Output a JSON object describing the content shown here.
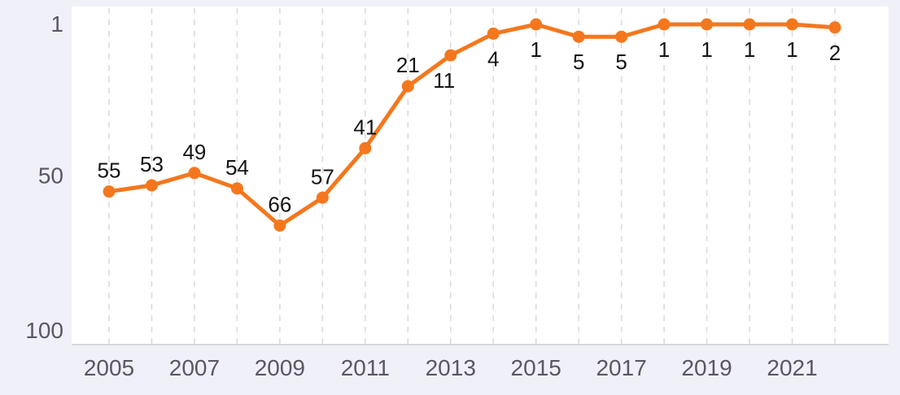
{
  "page": {
    "background": "#f0f1f8",
    "plot_background": "#ffffff"
  },
  "chart_data": {
    "type": "line",
    "title": "",
    "xlabel": "",
    "ylabel": "",
    "series_name": "rank",
    "categories": [
      "2005",
      "2006",
      "2007",
      "2008",
      "2009",
      "2010",
      "2011",
      "2012",
      "2013",
      "2014",
      "2015",
      "2016",
      "2017",
      "2018",
      "2019",
      "2020",
      "2021",
      "2022"
    ],
    "values": [
      55,
      53,
      49,
      54,
      66,
      57,
      41,
      21,
      11,
      4,
      1,
      5,
      5,
      1,
      1,
      1,
      1,
      2
    ],
    "point_labels": [
      "55",
      "53",
      "49",
      "54",
      "66",
      "57",
      "41",
      "21",
      "11",
      "4",
      "1",
      "5",
      "5",
      "1",
      "1",
      "1",
      "1",
      "2"
    ],
    "x_tick_labels": [
      "2005",
      "2007",
      "2009",
      "2011",
      "2013",
      "2015",
      "2017",
      "2019",
      "2021"
    ],
    "y_tick_labels": [
      "1",
      "50",
      "100"
    ],
    "y_ticks": [
      1,
      50,
      100
    ],
    "y_axis": {
      "inverted": true,
      "min": 1,
      "max": 100
    },
    "grid": {
      "vertical_dashed": true,
      "horizontal": false
    },
    "legend_position": "none",
    "colors": {
      "line": "#f5771d",
      "point": "#f5771d",
      "grid": "#d9d9dd",
      "axis_line": "#cccccf",
      "tick_text": "#5b5666",
      "data_label_text": "#141414"
    }
  }
}
